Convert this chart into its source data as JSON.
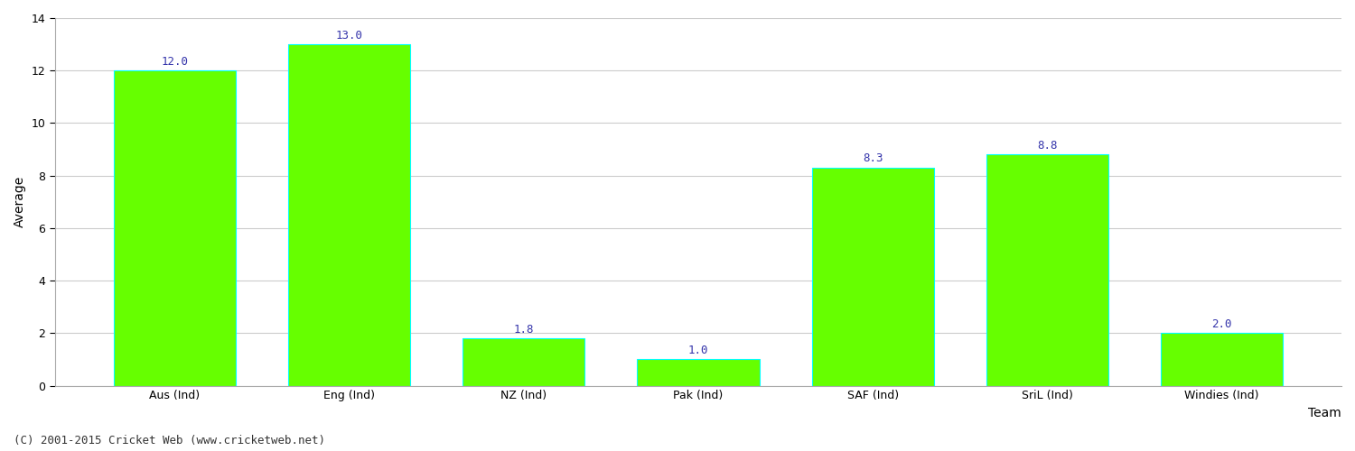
{
  "categories": [
    "Aus (Ind)",
    "Eng (Ind)",
    "NZ (Ind)",
    "Pak (Ind)",
    "SAF (Ind)",
    "SriL (Ind)",
    "Windies (Ind)"
  ],
  "values": [
    12.0,
    13.0,
    1.8,
    1.0,
    8.3,
    8.8,
    2.0
  ],
  "bar_color": "#66ff00",
  "bar_edge_color": "#00ffff",
  "label_color": "#3333aa",
  "label_fontsize": 9,
  "ylabel": "Average",
  "xlabel": "Team",
  "ylim": [
    0,
    14
  ],
  "yticks": [
    0,
    2,
    4,
    6,
    8,
    10,
    12,
    14
  ],
  "grid_color": "#cccccc",
  "bg_color": "#ffffff",
  "footer": "(C) 2001-2015 Cricket Web (www.cricketweb.net)",
  "footer_fontsize": 9,
  "axis_label_fontsize": 10,
  "tick_fontsize": 9,
  "bar_width": 0.7
}
